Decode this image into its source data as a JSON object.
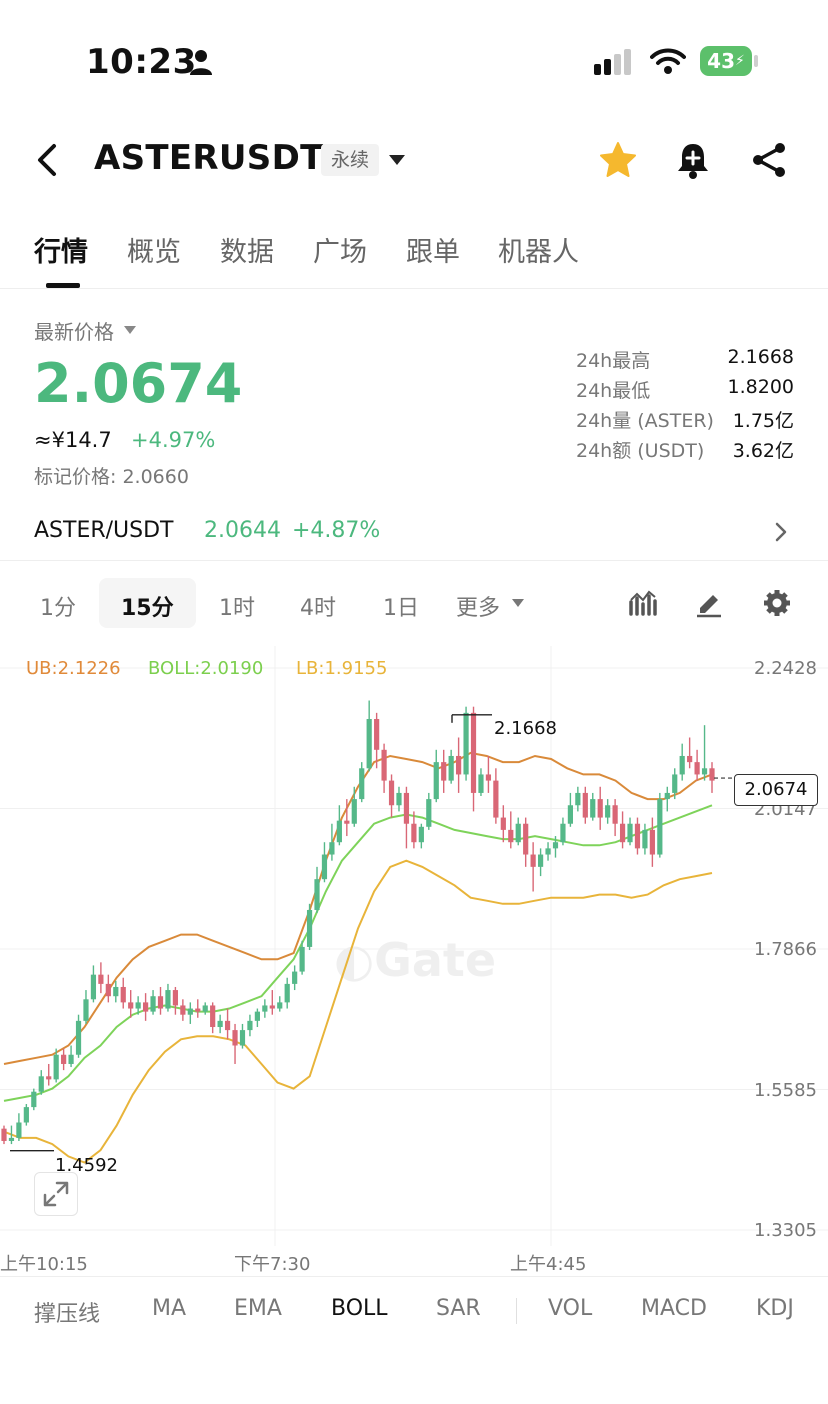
{
  "status_bar": {
    "time": "10:23",
    "battery": "43"
  },
  "header": {
    "pair": "ASTERUSDT",
    "contract_type": "永续"
  },
  "nav_tabs": [
    {
      "label": "行情",
      "active": true
    },
    {
      "label": "概览"
    },
    {
      "label": "数据"
    },
    {
      "label": "广场"
    },
    {
      "label": "跟单"
    },
    {
      "label": "机器人"
    }
  ],
  "price": {
    "label": "最新价格",
    "last": "2.0674",
    "cny": "≈¥14.7",
    "change": "+4.97%",
    "mark": "标记价格: 2.0660"
  },
  "stats": [
    {
      "label": "24h最高",
      "value": "2.1668"
    },
    {
      "label": "24h最低",
      "value": "1.8200"
    },
    {
      "label": "24h量 (ASTER)",
      "value": "1.75亿"
    },
    {
      "label": "24h额 (USDT)",
      "value": "3.62亿"
    }
  ],
  "spot": {
    "pair": "ASTER/USDT",
    "price": "2.0644",
    "change": "+4.87%"
  },
  "intervals": [
    {
      "label": "1分"
    },
    {
      "label": "15分",
      "active": true
    },
    {
      "label": "1时"
    },
    {
      "label": "4时"
    },
    {
      "label": "1日"
    },
    {
      "label": "更多"
    }
  ],
  "boll_legend": {
    "ub": "UB:2.1226",
    "boll": "BOLL:2.0190",
    "lb": "LB:1.9155"
  },
  "chart_data": {
    "type": "candlestick",
    "y_ticks": [
      "2.2428",
      "2.0147",
      "1.7866",
      "1.5585",
      "1.3305"
    ],
    "x_ticks": [
      "上午10:15",
      "下午7:30",
      "上午4:45"
    ],
    "high_marker": "2.1668",
    "low_marker": "1.4592",
    "current_price": "2.0674",
    "ylim": [
      1.3305,
      2.2428
    ],
    "watermark": "Gate",
    "colors": {
      "up": "#55b889",
      "down": "#d96776",
      "ub": "#d98a3a",
      "mid": "#7ed35a",
      "lb": "#e8b43a"
    },
    "candles": [
      [
        1.495,
        1.5,
        1.475,
        1.47
      ],
      [
        1.475,
        1.5,
        1.48,
        1.47
      ],
      [
        1.48,
        1.52,
        1.505,
        1.475
      ],
      [
        1.505,
        1.535,
        1.53,
        1.5
      ],
      [
        1.53,
        1.56,
        1.555,
        1.525
      ],
      [
        1.555,
        1.59,
        1.58,
        1.55
      ],
      [
        1.58,
        1.6,
        1.575,
        1.565
      ],
      [
        1.575,
        1.625,
        1.615,
        1.57
      ],
      [
        1.615,
        1.625,
        1.6,
        1.59
      ],
      [
        1.6,
        1.63,
        1.615,
        1.595
      ],
      [
        1.615,
        1.68,
        1.67,
        1.61
      ],
      [
        1.67,
        1.72,
        1.705,
        1.665
      ],
      [
        1.705,
        1.76,
        1.745,
        1.7
      ],
      [
        1.745,
        1.765,
        1.73,
        1.715
      ],
      [
        1.73,
        1.745,
        1.71,
        1.7
      ],
      [
        1.71,
        1.735,
        1.725,
        1.7
      ],
      [
        1.725,
        1.74,
        1.7,
        1.69
      ],
      [
        1.7,
        1.72,
        1.69,
        1.675
      ],
      [
        1.69,
        1.71,
        1.7,
        1.68
      ],
      [
        1.7,
        1.715,
        1.685,
        1.67
      ],
      [
        1.685,
        1.72,
        1.71,
        1.68
      ],
      [
        1.71,
        1.725,
        1.69,
        1.68
      ],
      [
        1.69,
        1.73,
        1.72,
        1.685
      ],
      [
        1.72,
        1.725,
        1.695,
        1.68
      ],
      [
        1.695,
        1.705,
        1.68,
        1.67
      ],
      [
        1.68,
        1.7,
        1.69,
        1.665
      ],
      [
        1.69,
        1.705,
        1.685,
        1.675
      ],
      [
        1.685,
        1.7,
        1.695,
        1.68
      ],
      [
        1.695,
        1.7,
        1.66,
        1.65
      ],
      [
        1.66,
        1.68,
        1.67,
        1.65
      ],
      [
        1.67,
        1.69,
        1.655,
        1.64
      ],
      [
        1.655,
        1.665,
        1.63,
        1.6
      ],
      [
        1.63,
        1.665,
        1.655,
        1.625
      ],
      [
        1.655,
        1.68,
        1.67,
        1.645
      ],
      [
        1.67,
        1.69,
        1.685,
        1.66
      ],
      [
        1.685,
        1.705,
        1.695,
        1.675
      ],
      [
        1.695,
        1.72,
        1.69,
        1.68
      ],
      [
        1.69,
        1.71,
        1.7,
        1.685
      ],
      [
        1.7,
        1.74,
        1.73,
        1.69
      ],
      [
        1.73,
        1.76,
        1.75,
        1.72
      ],
      [
        1.75,
        1.8,
        1.79,
        1.745
      ],
      [
        1.79,
        1.86,
        1.85,
        1.785
      ],
      [
        1.85,
        1.92,
        1.9,
        1.845
      ],
      [
        1.9,
        1.96,
        1.94,
        1.895
      ],
      [
        1.94,
        1.99,
        1.96,
        1.93
      ],
      [
        1.96,
        2.02,
        1.995,
        1.955
      ],
      [
        1.995,
        2.03,
        1.99,
        1.97
      ],
      [
        1.99,
        2.05,
        2.03,
        1.985
      ],
      [
        2.03,
        2.09,
        2.08,
        2.025
      ],
      [
        2.08,
        2.19,
        2.16,
        2.075
      ],
      [
        2.16,
        2.17,
        2.11,
        2.08
      ],
      [
        2.11,
        2.12,
        2.06,
        2.04
      ],
      [
        2.06,
        2.07,
        2.02,
        2.0
      ],
      [
        2.02,
        2.05,
        2.04,
        2.01
      ],
      [
        2.04,
        2.05,
        1.99,
        1.95
      ],
      [
        1.99,
        2.01,
        1.96,
        1.95
      ],
      [
        1.96,
        1.99,
        1.985,
        1.95
      ],
      [
        1.985,
        2.04,
        2.03,
        1.98
      ],
      [
        2.03,
        2.11,
        2.09,
        2.025
      ],
      [
        2.09,
        2.11,
        2.06,
        2.04
      ],
      [
        2.06,
        2.11,
        2.1,
        2.055
      ],
      [
        2.1,
        2.13,
        2.07,
        2.04
      ],
      [
        2.07,
        2.18,
        2.17,
        2.06
      ],
      [
        2.17,
        2.18,
        2.04,
        2.01
      ],
      [
        2.04,
        2.08,
        2.07,
        2.035
      ],
      [
        2.07,
        2.1,
        2.06,
        2.04
      ],
      [
        2.06,
        2.08,
        2.0,
        1.99
      ],
      [
        2.0,
        2.02,
        1.98,
        1.96
      ],
      [
        1.98,
        2.01,
        1.96,
        1.95
      ],
      [
        1.96,
        2.0,
        1.99,
        1.955
      ],
      [
        1.99,
        2.0,
        1.94,
        1.92
      ],
      [
        1.94,
        1.96,
        1.92,
        1.88
      ],
      [
        1.92,
        1.95,
        1.94,
        1.905
      ],
      [
        1.94,
        1.96,
        1.95,
        1.93
      ],
      [
        1.95,
        1.97,
        1.96,
        1.935
      ],
      [
        1.96,
        2.0,
        1.99,
        1.955
      ],
      [
        1.99,
        2.04,
        2.02,
        1.985
      ],
      [
        2.02,
        2.05,
        2.04,
        2.01
      ],
      [
        2.04,
        2.05,
        2.0,
        1.99
      ],
      [
        2.0,
        2.04,
        2.03,
        1.995
      ],
      [
        2.03,
        2.05,
        2.0,
        1.98
      ],
      [
        2.0,
        2.03,
        2.02,
        1.99
      ],
      [
        2.02,
        2.03,
        1.99,
        1.97
      ],
      [
        1.99,
        2.01,
        1.96,
        1.95
      ],
      [
        1.96,
        2.0,
        1.99,
        1.955
      ],
      [
        1.99,
        2.0,
        1.95,
        1.94
      ],
      [
        1.95,
        1.99,
        1.98,
        1.94
      ],
      [
        1.98,
        2.0,
        1.94,
        1.92
      ],
      [
        1.94,
        2.04,
        2.03,
        1.935
      ],
      [
        2.03,
        2.05,
        2.04,
        2.01
      ],
      [
        2.04,
        2.08,
        2.07,
        2.03
      ],
      [
        2.07,
        2.12,
        2.1,
        2.06
      ],
      [
        2.1,
        2.13,
        2.09,
        2.08
      ],
      [
        2.09,
        2.11,
        2.07,
        2.06
      ],
      [
        2.07,
        2.15,
        2.08,
        2.06
      ],
      [
        2.08,
        2.09,
        2.06,
        2.04
      ]
    ],
    "upper_band": [
      1.6,
      1.605,
      1.61,
      1.615,
      1.63,
      1.66,
      1.7,
      1.74,
      1.77,
      1.79,
      1.8,
      1.81,
      1.81,
      1.8,
      1.79,
      1.78,
      1.77,
      1.77,
      1.78,
      1.85,
      1.93,
      2.0,
      2.05,
      2.09,
      2.1,
      2.095,
      2.09,
      2.08,
      2.09,
      2.105,
      2.1,
      2.09,
      2.09,
      2.1,
      2.095,
      2.08,
      2.07,
      2.07,
      2.06,
      2.04,
      2.03,
      2.03,
      2.04,
      2.06,
      2.07
    ],
    "middle_band": [
      1.54,
      1.545,
      1.55,
      1.56,
      1.58,
      1.61,
      1.63,
      1.66,
      1.68,
      1.69,
      1.695,
      1.69,
      1.685,
      1.685,
      1.69,
      1.7,
      1.71,
      1.74,
      1.77,
      1.82,
      1.88,
      1.93,
      1.96,
      1.99,
      2.0,
      2.005,
      2.0,
      1.99,
      1.98,
      1.975,
      1.97,
      1.965,
      1.965,
      1.97,
      1.965,
      1.96,
      1.955,
      1.955,
      1.96,
      1.97,
      1.98,
      1.99,
      2.0,
      2.01,
      2.02
    ],
    "lower_band": [
      1.49,
      1.48,
      1.48,
      1.47,
      1.45,
      1.44,
      1.46,
      1.5,
      1.55,
      1.59,
      1.62,
      1.64,
      1.645,
      1.645,
      1.64,
      1.63,
      1.6,
      1.57,
      1.56,
      1.58,
      1.66,
      1.74,
      1.82,
      1.88,
      1.92,
      1.93,
      1.92,
      1.905,
      1.89,
      1.87,
      1.865,
      1.86,
      1.86,
      1.865,
      1.87,
      1.87,
      1.87,
      1.875,
      1.875,
      1.87,
      1.875,
      1.89,
      1.9,
      1.905,
      1.91
    ]
  },
  "indicators": [
    {
      "label": "撑压线"
    },
    {
      "label": "MA"
    },
    {
      "label": "EMA"
    },
    {
      "label": "BOLL",
      "active": true
    },
    {
      "label": "SAR"
    },
    {
      "label": "VOL"
    },
    {
      "label": "MACD"
    },
    {
      "label": "KDJ"
    }
  ]
}
